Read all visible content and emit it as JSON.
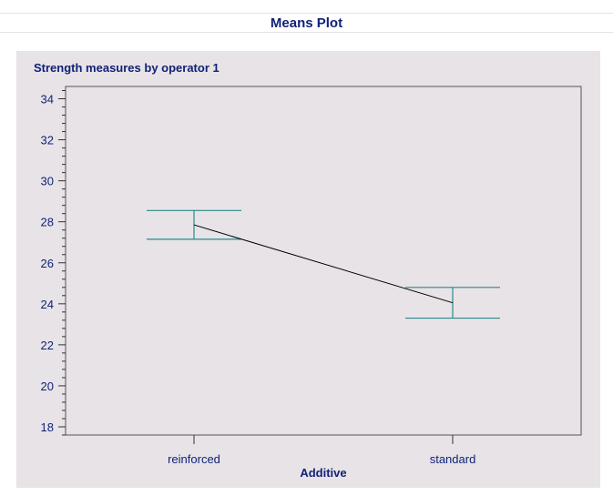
{
  "page": {
    "title": "Means Plot"
  },
  "colors": {
    "text": "#112277",
    "panel_bg": "#e7e3e7",
    "plot_bg": "#e7e3e7",
    "frame": "#555555",
    "errorbar": "#2b8a8a",
    "mean_line": "#000000"
  },
  "chart_data": {
    "type": "line",
    "title": "Strength measures by operator 1",
    "xlabel": "Additive",
    "ylabel": "",
    "categories": [
      "reinforced",
      "standard"
    ],
    "series": [
      {
        "values": [
          27.85,
          24.05
        ],
        "lower": [
          27.15,
          23.3
        ],
        "upper": [
          28.55,
          24.8
        ]
      }
    ],
    "ylim": [
      17.6,
      34.6
    ],
    "yticks": [
      18,
      20,
      22,
      24,
      26,
      28,
      30,
      32,
      34
    ],
    "yminor_step": 0.4,
    "grid": false,
    "legend": "none"
  }
}
